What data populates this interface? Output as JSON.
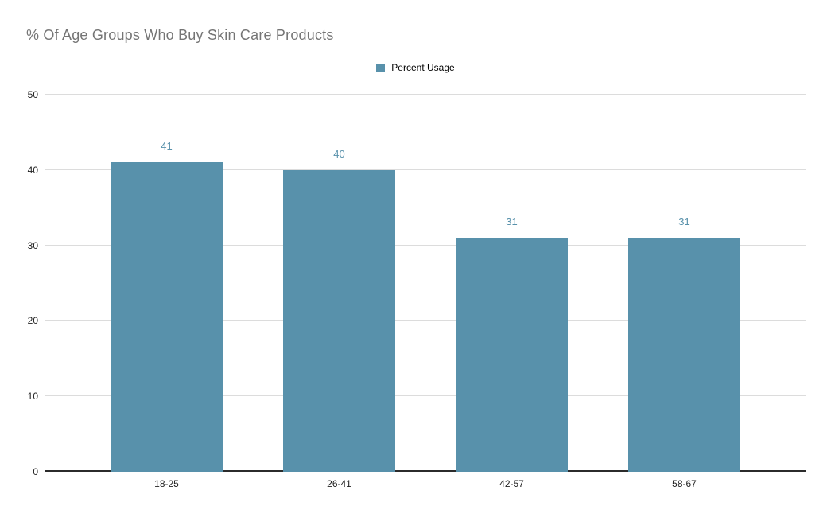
{
  "title": "% Of Age Groups Who Buy Skin Care Products",
  "legend": {
    "label": "Percent Usage",
    "position": "top-center"
  },
  "colors": {
    "bar": "#5891ab",
    "title_text": "#757575",
    "gridline": "#dcdcdc",
    "axis_line": "#2b2b2b",
    "tick_text": "#222222",
    "data_label": "#5891ab",
    "background": "#ffffff"
  },
  "chart_data": {
    "type": "bar",
    "title": "% Of Age Groups Who Buy Skin Care Products",
    "categories": [
      "18-25",
      "26-41",
      "42-57",
      "58-67"
    ],
    "series": [
      {
        "name": "Percent Usage",
        "values": [
          41,
          40,
          31,
          31
        ]
      }
    ],
    "data_labels": [
      "41",
      "40",
      "31",
      "31"
    ],
    "xlabel": "",
    "ylabel": "",
    "ylim": [
      0,
      50
    ],
    "yticks": [
      0,
      10,
      20,
      30,
      40,
      50
    ],
    "grid": "horizontal",
    "legend_position": "top-center"
  }
}
